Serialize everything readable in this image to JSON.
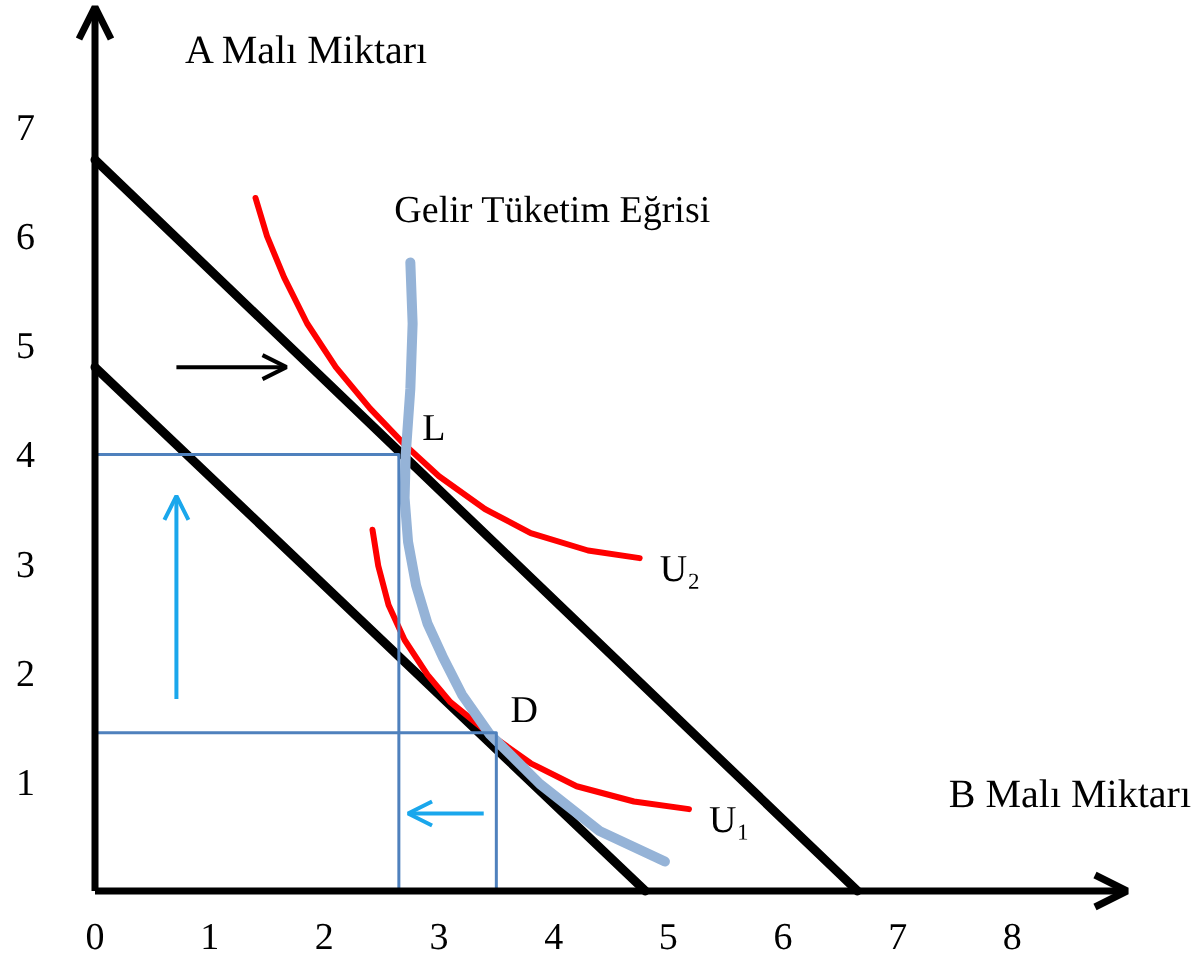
{
  "chart_data": {
    "type": "line",
    "xlabel": "B Malı Miktarı",
    "ylabel": "A Malı Miktarı",
    "xlim": [
      0,
      9
    ],
    "ylim": [
      0,
      8.1
    ],
    "xticks": [
      0,
      1,
      2,
      3,
      4,
      5,
      6,
      7,
      8
    ],
    "yticks": [
      1,
      2,
      3,
      4,
      5,
      6,
      7
    ],
    "series": [
      {
        "color": "#000000",
        "x": [
          0,
          6.65
        ],
        "values": [
          6.7,
          0
        ]
      },
      {
        "color": "#000000",
        "x": [
          0,
          4.8
        ],
        "values": [
          4.8,
          0
        ]
      },
      {
        "name": "U₂",
        "color": "#ff0000",
        "x": [
          1.4,
          1.5,
          1.65,
          1.85,
          2.1,
          2.4,
          2.7,
          3.0,
          3.4,
          3.8,
          4.3,
          4.75
        ],
        "values": [
          6.35,
          6.0,
          5.62,
          5.2,
          4.8,
          4.42,
          4.09,
          3.8,
          3.5,
          3.28,
          3.12,
          3.05
        ]
      },
      {
        "name": "U₁",
        "color": "#ff0000",
        "x": [
          2.42,
          2.47,
          2.56,
          2.7,
          2.9,
          3.1,
          3.44,
          3.8,
          4.2,
          4.7,
          5.18
        ],
        "values": [
          3.31,
          2.98,
          2.62,
          2.3,
          1.98,
          1.73,
          1.44,
          1.17,
          0.96,
          0.82,
          0.75
        ]
      },
      {
        "name": "Gelir Tüketim Eğrisi",
        "color": "#95b3d7",
        "x": [
          4.97,
          4.4,
          3.88,
          3.44,
          3.2,
          3.04,
          2.9,
          2.8,
          2.73,
          2.7,
          2.71,
          2.75,
          2.77,
          2.75
        ],
        "values": [
          0.27,
          0.55,
          0.98,
          1.44,
          1.8,
          2.13,
          2.45,
          2.8,
          3.2,
          3.6,
          4.0,
          4.6,
          5.2,
          5.76
        ]
      },
      {
        "color": "#4f81bd",
        "x": [
          0,
          2.65,
          2.65
        ],
        "values": [
          4.0,
          4.0,
          0
        ]
      },
      {
        "color": "#4f81bd",
        "x": [
          0,
          3.5,
          3.5
        ],
        "values": [
          1.45,
          1.45,
          0
        ]
      }
    ],
    "annotations": [
      {
        "text": "L",
        "x": 2.68,
        "y": 4.0
      },
      {
        "text": "D",
        "x": 3.45,
        "y": 1.42
      }
    ]
  }
}
